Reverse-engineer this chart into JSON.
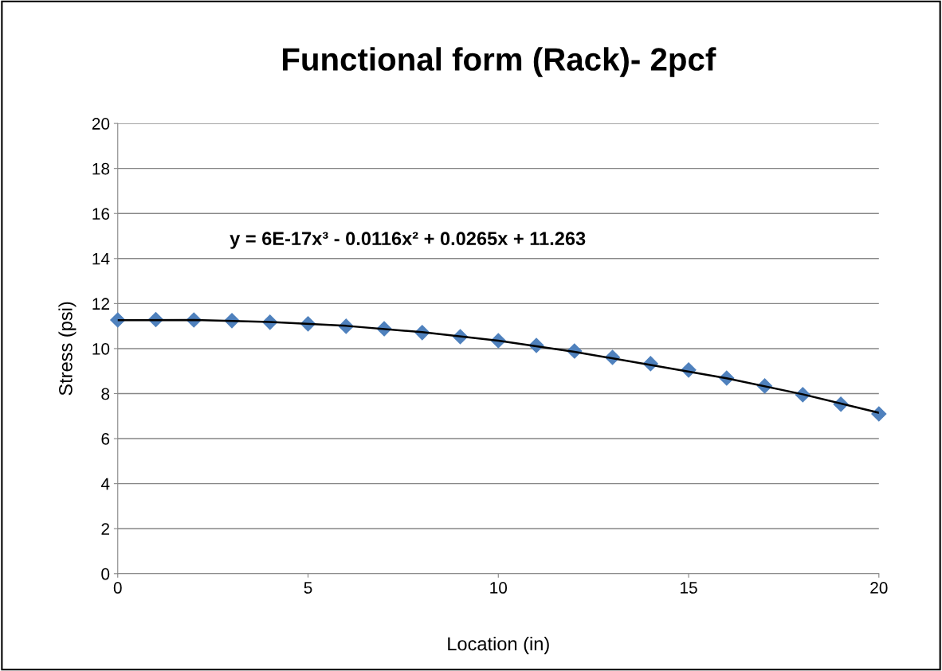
{
  "chart_data": {
    "type": "scatter",
    "title": "Functional form (Rack)- 2pcf",
    "xlabel": "Location (in)",
    "ylabel": "Stress (psi)",
    "annotations": [
      "y = 6E-17x³ - 0.0116x² + 0.0265x + 11.263"
    ],
    "x": [
      0,
      1,
      2,
      3,
      4,
      5,
      6,
      7,
      8,
      9,
      10,
      11,
      12,
      13,
      14,
      15,
      16,
      17,
      18,
      19,
      20
    ],
    "series": [
      {
        "color": "#4f81bd",
        "marker": "diamond",
        "values": [
          11.27,
          11.29,
          11.27,
          11.24,
          11.17,
          11.1,
          10.99,
          10.88,
          10.71,
          10.53,
          10.35,
          10.14,
          9.89,
          9.61,
          9.33,
          9.05,
          8.69,
          8.34,
          7.95,
          7.53,
          7.1
        ]
      },
      {
        "type": "line",
        "color": "#000000",
        "marker": "none",
        "x": [
          0,
          2,
          4,
          6,
          8,
          10,
          12,
          14,
          16,
          18,
          20
        ],
        "values": [
          11.26,
          11.27,
          11.18,
          11.01,
          10.73,
          10.35,
          9.86,
          9.27,
          8.68,
          7.97,
          7.15
        ]
      }
    ],
    "xlim": [
      0,
      20
    ],
    "xticks": [
      0,
      5,
      10,
      15,
      20
    ],
    "ylim": [
      0,
      20
    ],
    "yticks": [
      0,
      2,
      4,
      6,
      8,
      10,
      12,
      14,
      16,
      18,
      20
    ],
    "grid": "y",
    "legend": false
  }
}
